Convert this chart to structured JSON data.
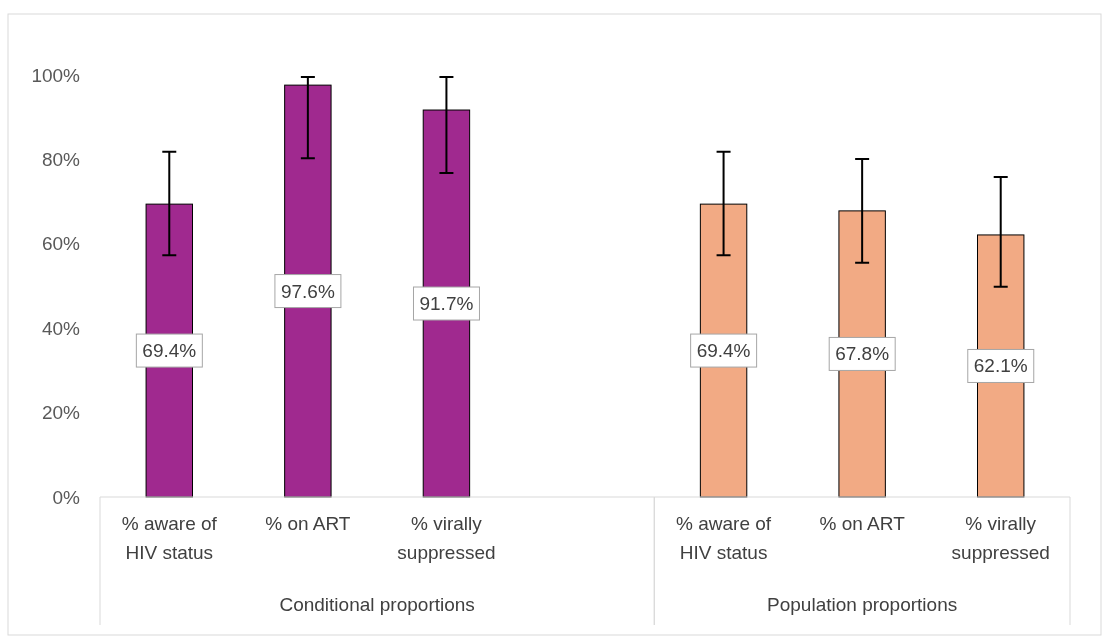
{
  "chart_data": {
    "type": "bar",
    "categories": [
      "% aware of HIV status",
      "% on ART",
      "% virally suppressed",
      null,
      "% aware of HIV status",
      "% on ART",
      "% virally suppressed"
    ],
    "values": [
      69.4,
      97.6,
      91.7,
      null,
      69.4,
      67.8,
      62.1
    ],
    "colors": [
      "#a0298f",
      "#a0298f",
      "#a0298f",
      null,
      "#f2aa84",
      "#f2aa84",
      "#f2aa84"
    ],
    "errors": [
      [
        57.3,
        81.8
      ],
      [
        80.3,
        99.5
      ],
      [
        76.8,
        99.5
      ],
      null,
      [
        57.3,
        81.8
      ],
      [
        55.5,
        80.1
      ],
      [
        49.8,
        75.8
      ]
    ],
    "value_labels": [
      "69.4%",
      "97.6%",
      "91.7%",
      null,
      "69.4%",
      "67.8%",
      "62.1%"
    ],
    "ylim": [
      0,
      100
    ],
    "yticks": [
      {
        "value": 0,
        "label": "0%"
      },
      {
        "value": 20,
        "label": "20%"
      },
      {
        "value": 40,
        "label": "40%"
      },
      {
        "value": 60,
        "label": "60%"
      },
      {
        "value": 80,
        "label": "80%"
      },
      {
        "value": 100,
        "label": "100%"
      }
    ],
    "grid": false,
    "annotations": [
      "Conditional proportions",
      "Population proportions"
    ]
  }
}
